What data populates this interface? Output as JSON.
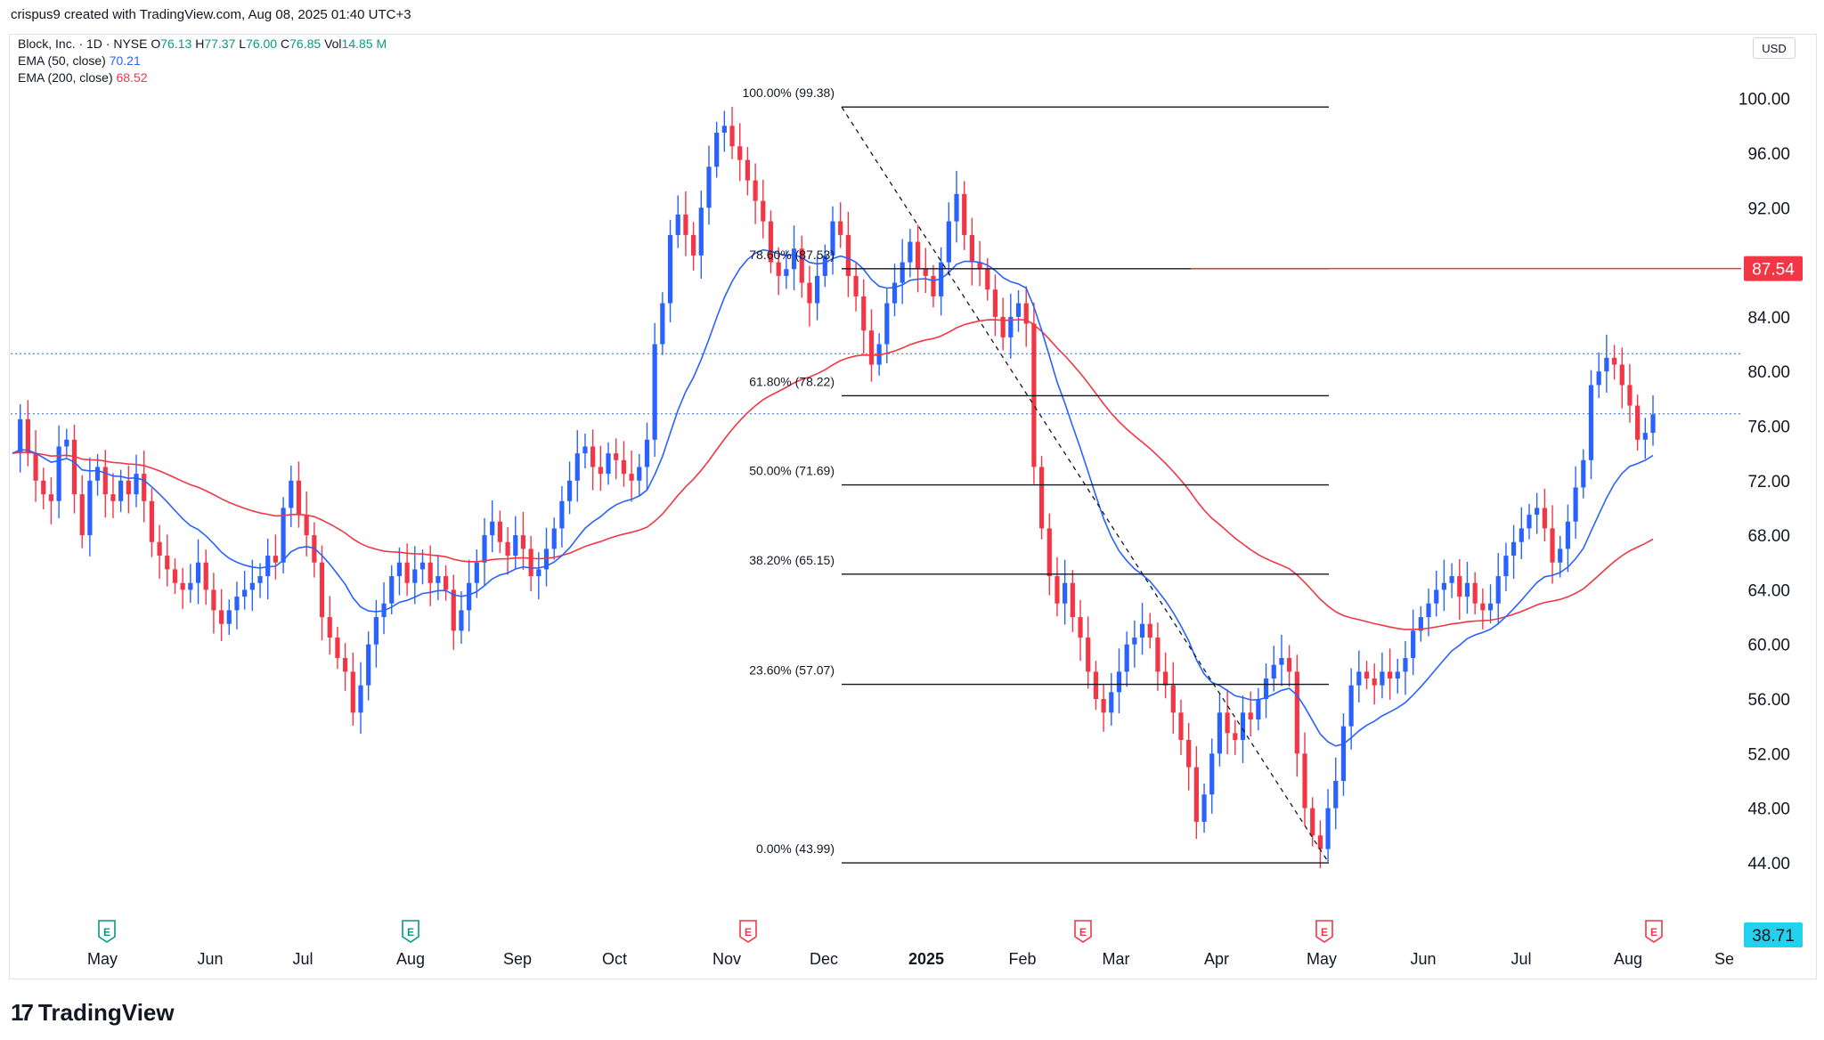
{
  "header": {
    "attribution": "crispus9 created with TradingView.com, Aug 08, 2025 01:40 UTC+3"
  },
  "legend": {
    "symbol": "Block, Inc. · 1D · NYSE",
    "o_label": "O",
    "o_value": "76.13",
    "h_label": "H",
    "h_value": "77.37",
    "l_label": "L",
    "l_value": "76.00",
    "c_label": "C",
    "c_value": "76.85",
    "vol_label": "Vol",
    "vol_value": "14.85 M",
    "ema50_label": "EMA (50, close)",
    "ema50_value": "70.21",
    "ema200_label": "EMA (200, close)",
    "ema200_value": "68.52"
  },
  "currency": "USD",
  "brand": {
    "name": "TradingView",
    "icon": "tradingview-logo-icon"
  },
  "colors": {
    "up": "#2962ff",
    "down": "#f23645",
    "ema50": "#2962ff",
    "ema200": "#f23645",
    "fib": "#131722",
    "label_red": "#f23645",
    "label_cyan": "#22d1ee"
  },
  "chart_data": {
    "type": "candlestick",
    "ylim": [
      38.71,
      102
    ],
    "y_ticks": [
      "100.00",
      "96.00",
      "92.00",
      "88.00",
      "84.00",
      "80.00",
      "76.00",
      "72.00",
      "68.00",
      "64.00",
      "60.00",
      "56.00",
      "52.00",
      "48.00",
      "44.00"
    ],
    "x_ticks": [
      "May",
      "Jun",
      "Jul",
      "Aug",
      "Sep",
      "Oct",
      "Nov",
      "Dec",
      "2025",
      "Feb",
      "Mar",
      "Apr",
      "May",
      "Jun",
      "Jul",
      "Aug",
      "Se"
    ],
    "price_labels": [
      {
        "value": 87.54,
        "text": "87.54",
        "color": "red"
      },
      {
        "value": 38.71,
        "text": "38.71",
        "color": "cyan"
      }
    ],
    "horizontal_dotted": [
      81.3,
      76.9
    ],
    "fibonacci": {
      "from": {
        "date": "Dec",
        "price": 99.38
      },
      "to": {
        "date": "May",
        "price": 43.99
      },
      "levels": [
        {
          "label": "100.00% (99.38)",
          "price": 99.38
        },
        {
          "label": "78.60% (87.53)",
          "price": 87.53
        },
        {
          "label": "61.80% (78.22)",
          "price": 78.22
        },
        {
          "label": "50.00% (71.69)",
          "price": 71.69
        },
        {
          "label": "38.20% (65.15)",
          "price": 65.15
        },
        {
          "label": "23.60% (57.07)",
          "price": 57.07
        },
        {
          "label": "0.00% (43.99)",
          "price": 43.99
        }
      ]
    },
    "events": [
      {
        "month": "May",
        "type": "E",
        "color": "green"
      },
      {
        "month": "Aug",
        "type": "E",
        "color": "green"
      },
      {
        "month": "Nov",
        "type": "E",
        "color": "red"
      },
      {
        "month": "Feb",
        "type": "E",
        "color": "red"
      },
      {
        "month": "May",
        "type": "E",
        "color": "red"
      },
      {
        "month": "Aug",
        "type": "E",
        "color": "red"
      }
    ],
    "close_series": [
      74,
      76.5,
      74,
      72,
      71,
      70.5,
      74.5,
      75,
      71,
      68,
      72,
      73,
      71,
      70.5,
      72,
      71,
      72.5,
      70.5,
      67.5,
      66.5,
      65.5,
      64.5,
      64,
      64.5,
      66,
      64,
      62.5,
      61.5,
      62.5,
      63.5,
      64,
      64.5,
      65,
      66.5,
      66,
      70,
      72,
      69.5,
      68,
      66,
      62,
      60.5,
      59,
      58,
      55,
      57,
      60,
      62,
      63,
      65,
      66,
      64.5,
      65.5,
      66,
      64.5,
      65,
      64,
      61,
      62.5,
      64.5,
      66,
      68,
      69,
      67.5,
      66.5,
      68,
      67,
      65,
      65.5,
      67,
      68.5,
      70.5,
      72,
      74,
      74.5,
      73,
      72.5,
      74,
      73.5,
      72.5,
      72,
      73,
      75,
      82,
      85,
      90,
      91.5,
      90,
      88.5,
      92,
      95,
      97.5,
      98,
      96.5,
      95.5,
      94,
      92.5,
      91,
      88,
      87,
      87.5,
      89,
      86.5,
      85,
      87,
      88.5,
      91,
      90,
      87,
      85.5,
      83,
      80.5,
      82,
      85,
      86.5,
      88,
      89.5,
      87.5,
      87,
      85.5,
      88,
      91,
      93,
      90,
      88,
      87.5,
      86,
      84,
      82.5,
      84,
      85,
      83.5,
      73,
      68.5,
      65,
      63,
      64.5,
      62,
      60.5,
      58,
      56,
      55,
      56.5,
      58,
      60,
      60.5,
      61.5,
      60.5,
      58,
      57,
      55,
      53,
      51,
      47,
      49,
      52,
      55,
      53.5,
      53,
      55,
      54.5,
      56,
      57.5,
      58.5,
      59,
      58,
      52,
      48,
      46,
      45,
      48,
      50,
      54,
      57,
      58,
      57.5,
      57,
      58,
      57.5,
      58,
      59,
      61,
      62,
      63,
      64,
      64.5,
      65,
      63.5,
      64.5,
      63,
      62.5,
      63,
      65,
      66.5,
      67.5,
      68.5,
      69.5,
      70,
      68.5,
      66,
      67,
      69,
      71.5,
      73.5,
      79,
      80,
      81,
      80.5,
      79,
      77.5,
      75,
      75.5,
      76.85
    ]
  }
}
